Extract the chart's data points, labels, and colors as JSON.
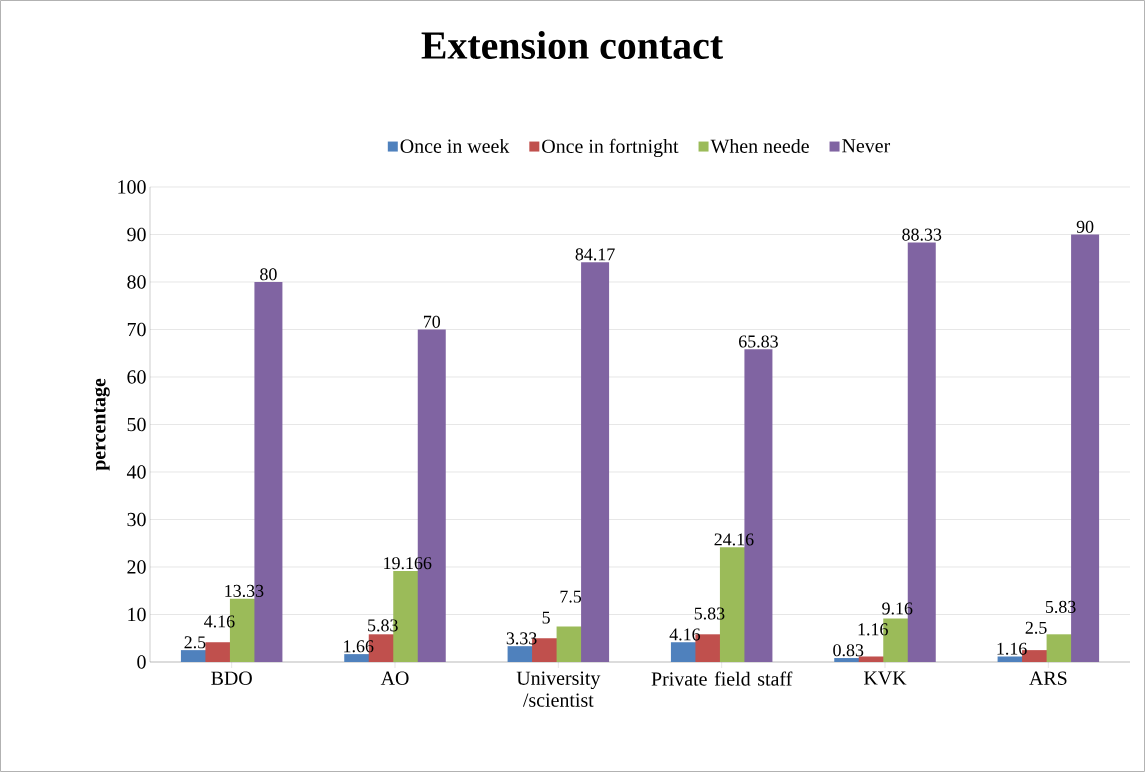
{
  "chart_data": {
    "type": "bar",
    "title": "Extension contact",
    "ylabel": "percentage",
    "categories": [
      "BDO",
      "AO",
      "University /scientist",
      "Private field staff",
      "KVK",
      "ARS"
    ],
    "series": [
      {
        "name": "Once in week",
        "color": "#4f81bd",
        "values": [
          2.5,
          1.66,
          3.33,
          4.16,
          0.83,
          1.16
        ],
        "value_labels": [
          "2.5",
          "1.66",
          "3.33",
          "4.16",
          "0.83",
          "1.16"
        ]
      },
      {
        "name": "Once in fortnight",
        "color": "#c0504d",
        "values": [
          4.16,
          5.83,
          5,
          5.83,
          1.16,
          2.5
        ],
        "value_labels": [
          "4.16",
          "5.83",
          "5",
          "5.83",
          "1.16",
          "2.5"
        ]
      },
      {
        "name": "When neede",
        "color": "#9bbb59",
        "values": [
          13.33,
          19.166,
          7.5,
          24.16,
          9.16,
          5.83
        ],
        "value_labels": [
          "13.33",
          "19.166",
          "7.5",
          "24.16",
          "9.16",
          "5.83"
        ]
      },
      {
        "name": "Never",
        "color": "#8064a2",
        "values": [
          80,
          70,
          84.17,
          65.83,
          88.33,
          90
        ],
        "value_labels": [
          "80",
          "70",
          "84.17",
          "65.83",
          "88.33",
          "90"
        ]
      }
    ],
    "ylim": [
      0,
      100
    ],
    "yticks": [
      0,
      10,
      20,
      30,
      40,
      50,
      60,
      70,
      80,
      90,
      100
    ],
    "grid": "y",
    "legend": "top"
  }
}
